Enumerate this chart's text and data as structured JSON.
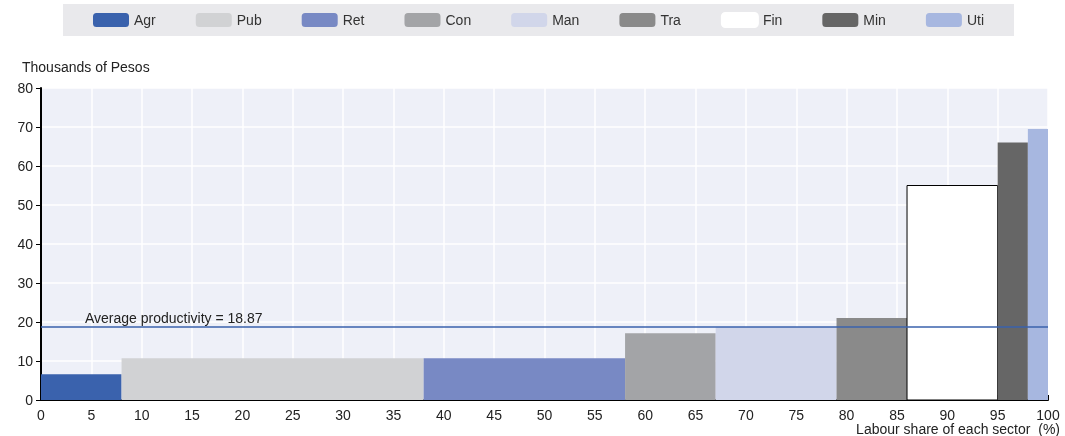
{
  "chart_data": {
    "type": "histogram",
    "xlabel": "Labour share of each sector  (%)",
    "ylabel": "Thousands of Pesos",
    "bins": [
      0,
      8,
      38,
      58,
      67,
      79,
      86,
      95,
      98,
      100
    ],
    "series": [
      {
        "name": "Agr",
        "color": "#3a62ad",
        "values": [
          6.6,
          null,
          null,
          null,
          null,
          null,
          null,
          null,
          null
        ]
      },
      {
        "name": "Pub",
        "color": "#d1d2d4",
        "values": [
          null,
          10.7,
          null,
          null,
          null,
          null,
          null,
          null,
          null
        ]
      },
      {
        "name": "Ret",
        "color": "#7889c4",
        "values": [
          null,
          null,
          10.7,
          null,
          null,
          null,
          null,
          null,
          null
        ]
      },
      {
        "name": "Con",
        "color": "#a3a4a7",
        "values": [
          null,
          null,
          null,
          17.1,
          null,
          null,
          null,
          null,
          null
        ]
      },
      {
        "name": "Man",
        "color": "#d1d6ea",
        "values": [
          null,
          null,
          null,
          null,
          18.7,
          null,
          null,
          null,
          null
        ]
      },
      {
        "name": "Tra",
        "color": "#8a8a8a",
        "values": [
          null,
          null,
          null,
          null,
          null,
          21,
          null,
          null,
          null
        ]
      },
      {
        "name": "Fin",
        "color": "#ffffff",
        "values": [
          null,
          null,
          null,
          null,
          null,
          null,
          55,
          null,
          null
        ]
      },
      {
        "name": "Min",
        "color": "#666666",
        "values": [
          null,
          null,
          null,
          null,
          null,
          null,
          null,
          66,
          null
        ]
      },
      {
        "name": "Uti",
        "color": "#a7b7e0",
        "values": [
          null,
          null,
          null,
          null,
          null,
          null,
          null,
          null,
          69.5
        ]
      }
    ],
    "ref_lines": [
      {
        "axis": "y",
        "value": 18.87,
        "label": "Average productivity = 18.87",
        "color": "#3a62ad"
      }
    ],
    "xlim": [
      0,
      100
    ],
    "xticks": [
      0,
      5,
      10,
      15,
      20,
      25,
      30,
      35,
      40,
      45,
      50,
      55,
      60,
      65,
      70,
      75,
      80,
      85,
      90,
      95,
      100
    ],
    "ylim": [
      0,
      80
    ],
    "yticks": [
      0,
      10,
      20,
      30,
      40,
      50,
      60,
      70,
      80
    ],
    "grid": true,
    "legend": "top"
  }
}
